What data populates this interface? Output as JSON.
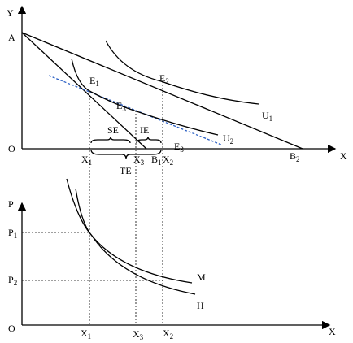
{
  "labels": [
    {
      "text": "Y"
    },
    {
      "text": "A"
    },
    {
      "text": "O"
    },
    {
      "text": "X"
    },
    {
      "text": "E",
      "sub": "1"
    },
    {
      "text": "E",
      "sub": "2"
    },
    {
      "text": "E",
      "sub": "3"
    },
    {
      "text": "E",
      "sub": "3"
    },
    {
      "text": "U",
      "sub": "1"
    },
    {
      "text": "U",
      "sub": "2"
    },
    {
      "text": "B",
      "sub": "1"
    },
    {
      "text": "B",
      "sub": "2"
    },
    {
      "text": "X",
      "sub": "1"
    },
    {
      "text": "X",
      "sub": "3"
    },
    {
      "text": "X",
      "sub": "2"
    },
    {
      "text": "SE"
    },
    {
      "text": "IE"
    },
    {
      "text": "TE"
    },
    {
      "text": "P"
    },
    {
      "text": "P",
      "sub": "1"
    },
    {
      "text": "P",
      "sub": "2"
    },
    {
      "text": "O"
    },
    {
      "text": "X"
    },
    {
      "text": "X",
      "sub": "1"
    },
    {
      "text": "X",
      "sub": "3"
    },
    {
      "text": "X",
      "sub": "2"
    },
    {
      "text": "M"
    },
    {
      "text": "H"
    }
  ]
}
